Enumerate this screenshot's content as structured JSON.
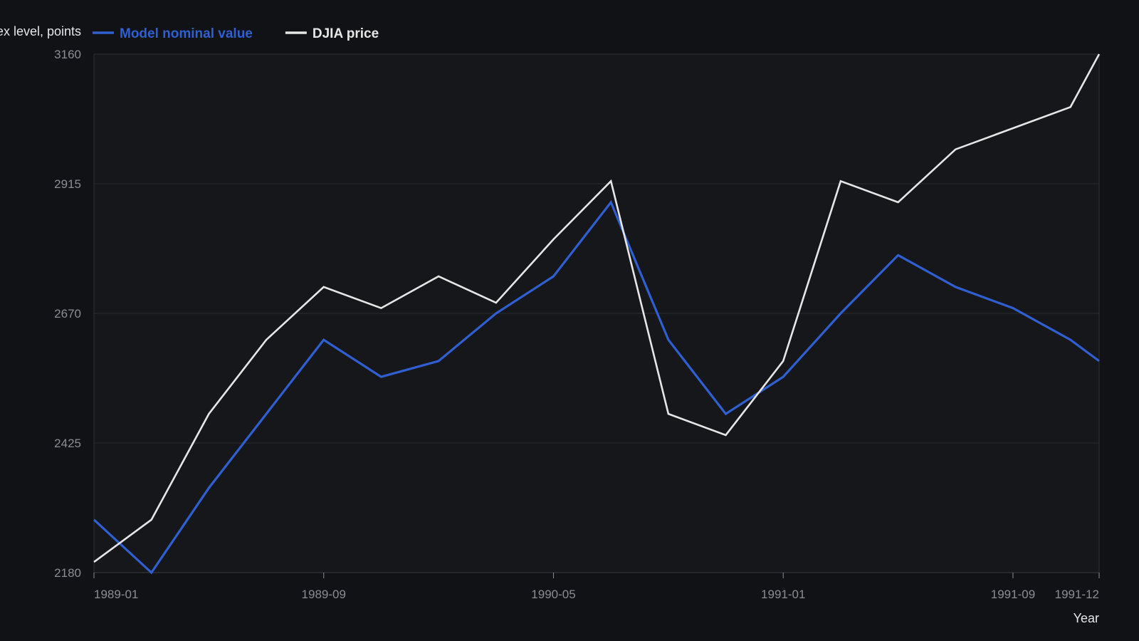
{
  "chart_data": {
    "type": "line",
    "title": "",
    "xlabel": "Year",
    "ylabel": "Index level, points",
    "ylim": [
      2180,
      3160
    ],
    "yticks": [
      2180,
      2425,
      2670,
      2915,
      3160
    ],
    "x": [
      "1989-01",
      "1989-03",
      "1989-05",
      "1989-07",
      "1989-09",
      "1989-11",
      "1990-01",
      "1990-03",
      "1990-05",
      "1990-07",
      "1990-09",
      "1990-11",
      "1991-01",
      "1991-03",
      "1991-05",
      "1991-07",
      "1991-09",
      "1991-11",
      "1991-12"
    ],
    "xticks": [
      "1989-01",
      "1989-09",
      "1990-05",
      "1991-01",
      "1991-09",
      "1991-12"
    ],
    "grid": "horizontal",
    "legend_position": "top-left",
    "series": [
      {
        "name": "Model nominal value",
        "color": "#2f5fd0",
        "values": [
          2280,
          2180,
          2340,
          2480,
          2620,
          2550,
          2580,
          2670,
          2740,
          2880,
          2620,
          2480,
          2550,
          2670,
          2780,
          2720,
          2680,
          2620,
          2580
        ]
      },
      {
        "name": "DJIA price",
        "color": "#e6e6e6",
        "values": [
          2200,
          2280,
          2480,
          2620,
          2720,
          2680,
          2740,
          2690,
          2810,
          2920,
          2480,
          2440,
          2580,
          2920,
          2880,
          2980,
          3020,
          3060,
          3160
        ]
      }
    ]
  }
}
